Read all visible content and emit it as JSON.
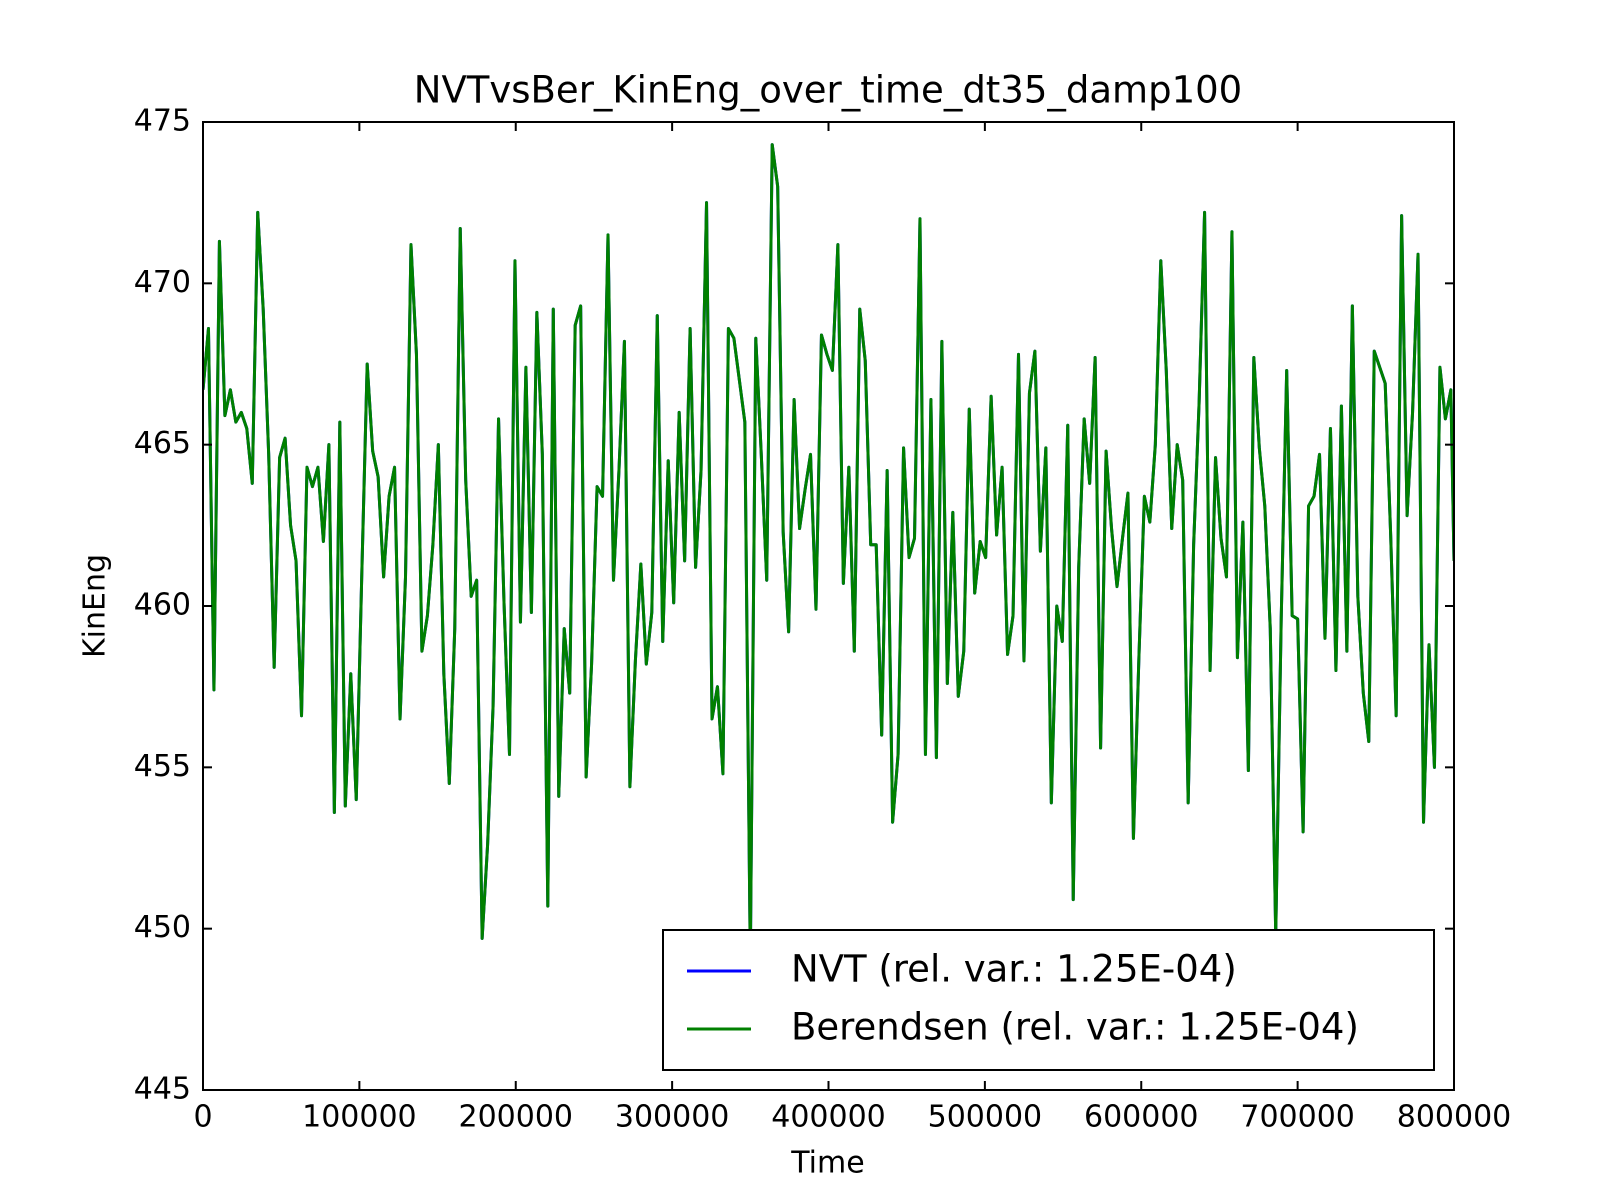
{
  "chart_data": {
    "type": "line",
    "title": "NVTvsBer_KinEng_over_time_dt35_damp100",
    "x_label": "Time",
    "y_label": "KinEng",
    "xlim": [
      0,
      800000
    ],
    "xticks": [
      0,
      100000,
      200000,
      300000,
      400000,
      500000,
      600000,
      700000,
      800000
    ],
    "ylim": [
      445,
      475
    ],
    "yticks": [
      445,
      450,
      455,
      460,
      465,
      470,
      475
    ],
    "legend": "lower right",
    "grid": false,
    "x": [
      0,
      3500,
      7000,
      10500,
      14000,
      17500,
      21000,
      24500,
      28000,
      31500,
      35000,
      38500,
      42000,
      45500,
      49000,
      52500,
      56000,
      59500,
      63000,
      66500,
      70000,
      73500,
      77000,
      80500,
      84000,
      87500,
      91000,
      94500,
      98000,
      101500,
      105000,
      108500,
      112000,
      115500,
      119000,
      122500,
      126000,
      129500,
      133000,
      136500,
      140000,
      143500,
      147000,
      150500,
      154000,
      157500,
      161000,
      164500,
      168000,
      171500,
      175000,
      178500,
      182000,
      185500,
      189000,
      192500,
      196000,
      199500,
      203000,
      206500,
      210000,
      213500,
      217000,
      220500,
      224000,
      227500,
      231000,
      234500,
      238000,
      241500,
      245000,
      248500,
      252000,
      255500,
      259000,
      262500,
      266000,
      269500,
      273000,
      276500,
      280000,
      283500,
      287000,
      290500,
      294000,
      297500,
      301000,
      304500,
      308000,
      311500,
      315000,
      318500,
      322000,
      325500,
      329000,
      332500,
      336000,
      339500,
      343000,
      346500,
      350000,
      353500,
      357000,
      360500,
      364000,
      367500,
      371000,
      374500,
      378000,
      381500,
      385000,
      388500,
      392000,
      395500,
      399000,
      402500,
      406000,
      409500,
      413000,
      416500,
      420000,
      423500,
      427000,
      430500,
      434000,
      437500,
      441000,
      444500,
      448000,
      451500,
      455000,
      458500,
      462000,
      465500,
      469000,
      472500,
      476000,
      479500,
      483000,
      486500,
      490000,
      493500,
      497000,
      500500,
      504000,
      507500,
      511000,
      514500,
      518000,
      521500,
      525000,
      528500,
      532000,
      535500,
      539000,
      542500,
      546000,
      549500,
      553000,
      556500,
      560000,
      563500,
      567000,
      570500,
      574000,
      577500,
      581000,
      584500,
      588000,
      591500,
      595000,
      598500,
      602000,
      605500,
      609000,
      612500,
      616000,
      619500,
      623000,
      626500,
      630000,
      633500,
      637000,
      640500,
      644000,
      647500,
      651000,
      654500,
      658000,
      661500,
      665000,
      668500,
      672000,
      675500,
      679000,
      682500,
      686000,
      689500,
      693000,
      696500,
      700000,
      703500,
      707000,
      710500,
      714000,
      717500,
      721000,
      724500,
      728000,
      731500,
      735000,
      738500,
      742000,
      745500,
      749000,
      752500,
      756000,
      759500,
      763000,
      766500,
      770000,
      773500,
      777000,
      780500,
      784000,
      787500,
      791000,
      794500,
      798000,
      800000
    ],
    "series": [
      {
        "name": "NVT (rel. var.: 1.25E-04)",
        "color": "#0000ff",
        "values": [
          466.7,
          468.6,
          457.4,
          471.3,
          465.9,
          466.7,
          465.7,
          466,
          465.5,
          463.8,
          472.2,
          469.2,
          464.7,
          458.1,
          464.6,
          465.2,
          462.5,
          461.4,
          456.6,
          464.3,
          463.7,
          464.3,
          462,
          465,
          453.6,
          465.7,
          453.8,
          457.9,
          454,
          460.9,
          467.5,
          464.8,
          464,
          460.9,
          463.4,
          464.3,
          456.5,
          460.9,
          471.2,
          467.8,
          458.6,
          459.7,
          461.9,
          465,
          457.9,
          454.5,
          459.3,
          471.7,
          463.9,
          460.3,
          460.8,
          449.7,
          452.6,
          456.9,
          465.8,
          460.1,
          455.4,
          470.7,
          459.5,
          467.4,
          459.8,
          469.1,
          464.7,
          450.7,
          469.2,
          454.1,
          459.3,
          457.3,
          468.7,
          469.3,
          454.7,
          458.2,
          463.7,
          463.4,
          471.5,
          460.8,
          464.2,
          468.2,
          454.4,
          458.3,
          461.3,
          458.2,
          459.8,
          469,
          458.9,
          464.5,
          460.1,
          466,
          461.4,
          468.6,
          461.2,
          464.2,
          472.5,
          456.5,
          457.5,
          454.8,
          468.6,
          468.3,
          467,
          465.7,
          449,
          468.3,
          464.7,
          460.8,
          474.3,
          473,
          462.3,
          459.2,
          466.4,
          462.4,
          463.6,
          464.7,
          459.9,
          468.4,
          467.8,
          467.3,
          471.2,
          460.7,
          464.3,
          458.6,
          469.2,
          467.6,
          461.9,
          461.9,
          456,
          464.2,
          453.3,
          455.4,
          464.9,
          461.5,
          462.1,
          472,
          455.4,
          466.4,
          455.3,
          468.2,
          457.6,
          462.9,
          457.2,
          458.6,
          466.1,
          460.4,
          462,
          461.5,
          466.5,
          462.2,
          464.3,
          458.5,
          459.7,
          467.8,
          458.3,
          466.6,
          467.9,
          461.7,
          464.9,
          453.9,
          460,
          458.9,
          465.6,
          450.9,
          461.2,
          465.8,
          463.8,
          467.7,
          455.6,
          464.8,
          462.4,
          460.6,
          462.1,
          463.5,
          452.8,
          458.4,
          463.4,
          462.6,
          465,
          470.7,
          467.3,
          462.4,
          465,
          463.9,
          453.9,
          461.9,
          466.3,
          472.2,
          458,
          464.6,
          462.1,
          460.9,
          471.6,
          458.4,
          462.6,
          454.9,
          467.7,
          464.9,
          463.1,
          459.3,
          449.8,
          459.6,
          467.3,
          459.7,
          459.6,
          453,
          463.1,
          463.4,
          464.7,
          459,
          465.5,
          458,
          466.2,
          458.6,
          469.3,
          460.3,
          457.3,
          455.8,
          467.9,
          467.4,
          466.9,
          462.2,
          456.6,
          472.1,
          462.8,
          466,
          470.9,
          453.3,
          458.8,
          455,
          467.4,
          465.8,
          466.7,
          461.4
        ]
      },
      {
        "name": "Berendsen (rel. var.: 1.25E-04)",
        "color": "#008000",
        "values": [
          466.7,
          468.6,
          457.4,
          471.3,
          465.9,
          466.7,
          465.7,
          466,
          465.5,
          463.8,
          472.2,
          469.2,
          464.7,
          458.1,
          464.6,
          465.2,
          462.5,
          461.4,
          456.6,
          464.3,
          463.7,
          464.3,
          462,
          465,
          453.6,
          465.7,
          453.8,
          457.9,
          454,
          460.9,
          467.5,
          464.8,
          464,
          460.9,
          463.4,
          464.3,
          456.5,
          460.9,
          471.2,
          467.8,
          458.6,
          459.7,
          461.9,
          465,
          457.9,
          454.5,
          459.3,
          471.7,
          463.9,
          460.3,
          460.8,
          449.7,
          452.6,
          456.9,
          465.8,
          460.1,
          455.4,
          470.7,
          459.5,
          467.4,
          459.8,
          469.1,
          464.7,
          450.7,
          469.2,
          454.1,
          459.3,
          457.3,
          468.7,
          469.3,
          454.7,
          458.2,
          463.7,
          463.4,
          471.5,
          460.8,
          464.2,
          468.2,
          454.4,
          458.3,
          461.3,
          458.2,
          459.8,
          469,
          458.9,
          464.5,
          460.1,
          466,
          461.4,
          468.6,
          461.2,
          464.2,
          472.5,
          456.5,
          457.5,
          454.8,
          468.6,
          468.3,
          467,
          465.7,
          449,
          468.3,
          464.7,
          460.8,
          474.3,
          473,
          462.3,
          459.2,
          466.4,
          462.4,
          463.6,
          464.7,
          459.9,
          468.4,
          467.8,
          467.3,
          471.2,
          460.7,
          464.3,
          458.6,
          469.2,
          467.6,
          461.9,
          461.9,
          456,
          464.2,
          453.3,
          455.4,
          464.9,
          461.5,
          462.1,
          472,
          455.4,
          466.4,
          455.3,
          468.2,
          457.6,
          462.9,
          457.2,
          458.6,
          466.1,
          460.4,
          462,
          461.5,
          466.5,
          462.2,
          464.3,
          458.5,
          459.7,
          467.8,
          458.3,
          466.6,
          467.9,
          461.7,
          464.9,
          453.9,
          460,
          458.9,
          465.6,
          450.9,
          461.2,
          465.8,
          463.8,
          467.7,
          455.6,
          464.8,
          462.4,
          460.6,
          462.1,
          463.5,
          452.8,
          458.4,
          463.4,
          462.6,
          465,
          470.7,
          467.3,
          462.4,
          465,
          463.9,
          453.9,
          461.9,
          466.3,
          472.2,
          458,
          464.6,
          462.1,
          460.9,
          471.6,
          458.4,
          462.6,
          454.9,
          467.7,
          464.9,
          463.1,
          459.3,
          449.8,
          459.6,
          467.3,
          459.7,
          459.6,
          453,
          463.1,
          463.4,
          464.7,
          459,
          465.5,
          458,
          466.2,
          458.6,
          469.3,
          460.3,
          457.3,
          455.8,
          467.9,
          467.4,
          466.9,
          462.2,
          456.6,
          472.1,
          462.8,
          466,
          470.9,
          453.3,
          458.8,
          455,
          467.4,
          465.8,
          466.7,
          461.4
        ]
      }
    ]
  }
}
